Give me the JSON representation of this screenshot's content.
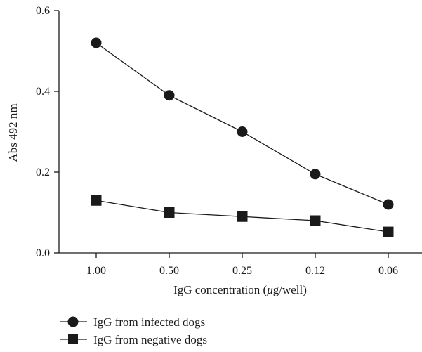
{
  "chart_data": {
    "type": "line",
    "categories": [
      "1.00",
      "0.50",
      "0.25",
      "0.12",
      "0.06"
    ],
    "xlabel": "IgG concentration (μg/well)",
    "xlabel_parts": [
      "IgG concentration (",
      "μ",
      "g/well)"
    ],
    "ylabel": "Abs 492 nm",
    "ylim": [
      0.0,
      0.6
    ],
    "yticks": [
      "0.0",
      "0.2",
      "0.4",
      "0.6"
    ],
    "ytick_values": [
      0.0,
      0.2,
      0.4,
      0.6
    ],
    "grid": false,
    "legend_position": "bottom-left",
    "series": [
      {
        "name": "IgG from infected dogs",
        "marker": "circle",
        "color": "#1a1a1a",
        "values": [
          0.52,
          0.39,
          0.3,
          0.195,
          0.12
        ]
      },
      {
        "name": "IgG from negative dogs",
        "marker": "square",
        "color": "#1a1a1a",
        "values": [
          0.13,
          0.1,
          0.09,
          0.08,
          0.052
        ]
      }
    ]
  }
}
